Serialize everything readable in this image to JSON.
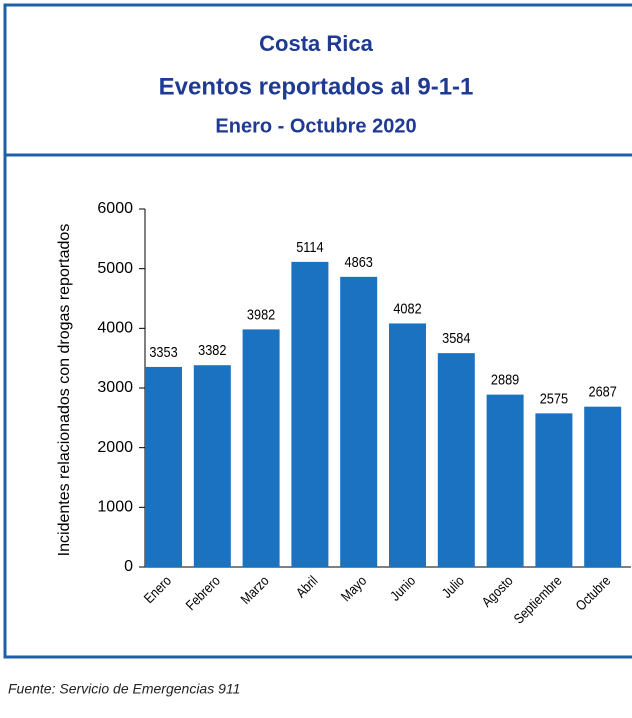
{
  "chart_data": {
    "type": "bar",
    "title": "Costa Rica",
    "subtitle": "Eventos reportados al 9-1-1",
    "period": "Enero - Octubre 2020",
    "y_label": "Incidentes relacionados con drogas reportados",
    "categories": [
      "Enero",
      "Febrero",
      "Marzo",
      "Abril",
      "Mayo",
      "Junio",
      "Julio",
      "Agosto",
      "Septiembre",
      "Octubre"
    ],
    "values": [
      3353,
      3382,
      3982,
      5114,
      4863,
      4082,
      3584,
      2889,
      2575,
      2687
    ],
    "color": "#1a72c0",
    "ylim": [
      0,
      6000
    ],
    "yticks": [
      0,
      1000,
      2000,
      3000,
      4000,
      5000,
      6000
    ],
    "grid": false,
    "source": "Fuente: Servicio de Emergencias 911"
  }
}
